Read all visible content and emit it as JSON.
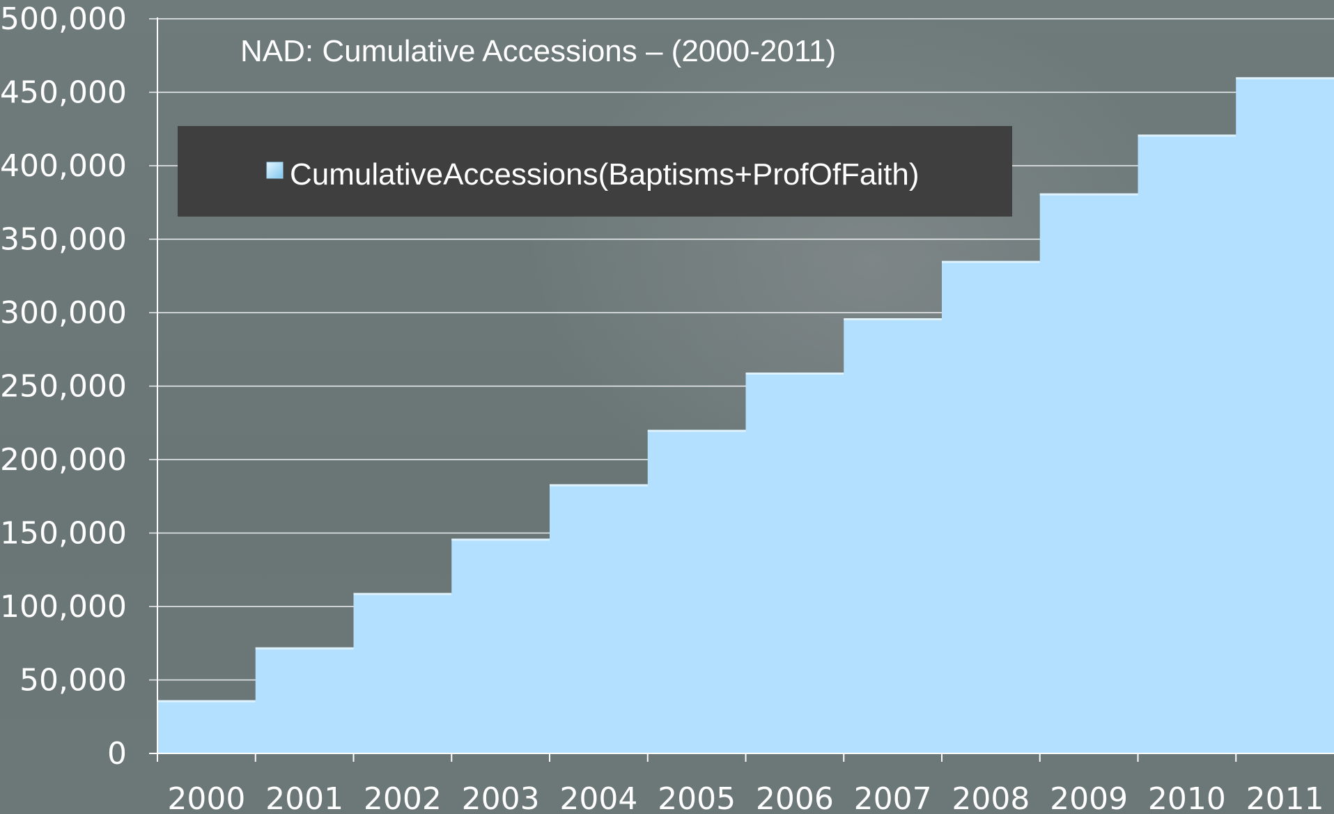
{
  "chart_data": {
    "type": "area",
    "title": "NAD:  Cumulative Accessions – (2000-2011)",
    "xlabel": "",
    "ylabel": "",
    "categories": [
      "2000",
      "2001",
      "2002",
      "2003",
      "2004",
      "2005",
      "2006",
      "2007",
      "2008",
      "2009",
      "2010",
      "2011"
    ],
    "series": [
      {
        "name": "CumulativeAccessions(Baptisms+ProfOfFaith)",
        "values": [
          36000,
          72000,
          109000,
          146000,
          183000,
          220000,
          259000,
          296000,
          335000,
          381000,
          421000,
          460000
        ]
      }
    ],
    "ylim": [
      0,
      500000
    ],
    "yticks": [
      "0",
      "50,000",
      "100,000",
      "150,000",
      "200,000",
      "250,000",
      "300,000",
      "350,000",
      "400,000",
      "450,000",
      "500,000"
    ],
    "grid": true,
    "legend_position": "top-left",
    "colors": {
      "background": "#6e7a7a",
      "fill": "#b3e0ff",
      "gridline": "#ffffff",
      "legend_box": "#3f3f3f",
      "text": "#ffffff"
    }
  }
}
